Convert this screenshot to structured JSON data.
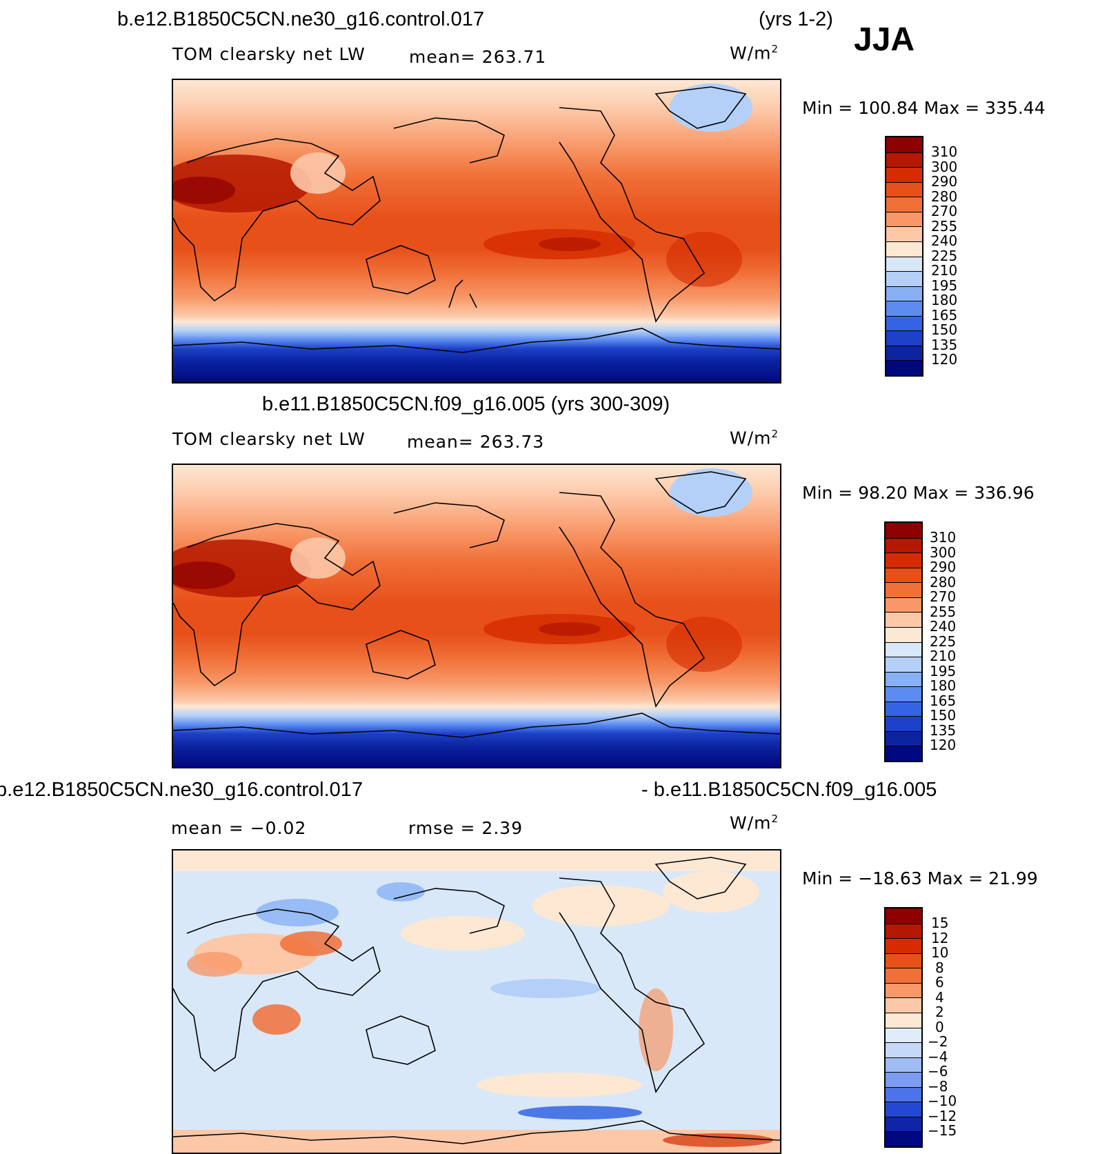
{
  "season": "JJA",
  "panels": [
    {
      "title_left": "b.e12.B1850C5CN.ne30_g16.control.017",
      "title_right": "(yrs 1-2)",
      "variable": "TOM clearsky net LW",
      "mean": "mean= 263.71",
      "units": "W/m",
      "units_sup": "2",
      "minmax": "Min  =  100.84  Max  =  335.44",
      "colorbar_labels": [
        "310",
        "300",
        "290",
        "280",
        "270",
        "255",
        "240",
        "225",
        "210",
        "195",
        "180",
        "165",
        "150",
        "135",
        "120"
      ],
      "colorbar_colors": [
        "#8c0000",
        "#b41800",
        "#d42c00",
        "#e8501a",
        "#f07038",
        "#f89868",
        "#fcc8a8",
        "#fde8d4",
        "#d8e8f8",
        "#b4d0f8",
        "#88b0f4",
        "#5c8cf0",
        "#3464e4",
        "#1c40c8",
        "#0c24a0",
        "#000880"
      ]
    },
    {
      "title_left": "b.e11.B1850C5CN.f09_g16.005 (yrs 300-309)",
      "variable": "TOM clearsky net LW",
      "mean": "mean= 263.73",
      "units": "W/m",
      "units_sup": "2",
      "minmax": "Min  =   98.20  Max  =  336.96",
      "colorbar_labels": [
        "310",
        "300",
        "290",
        "280",
        "270",
        "255",
        "240",
        "225",
        "210",
        "195",
        "180",
        "165",
        "150",
        "135",
        "120"
      ]
    },
    {
      "title_left": "b.e12.B1850C5CN.ne30_g16.control.017",
      "title_right": "- b.e11.B1850C5CN.f09_g16.005",
      "mean": "mean  =   −0.02",
      "rmse": "rmse  =    2.39",
      "units": "W/m",
      "units_sup": "2",
      "minmax": "Min  =  −18.63  Max  =   21.99",
      "colorbar_labels": [
        "15",
        "12",
        "10",
        "8",
        "6",
        "4",
        "2",
        "0",
        "−2",
        "−4",
        "−6",
        "−8",
        "−10",
        "−12",
        "−15"
      ],
      "colorbar_colors": [
        "#8c0000",
        "#b41800",
        "#d42c00",
        "#e8501a",
        "#f07038",
        "#f89868",
        "#fcc8a8",
        "#fde8d4",
        "#e0ecfa",
        "#c4d8f8",
        "#a0bcf4",
        "#7c9cf0",
        "#4c74e8",
        "#2448d4",
        "#1024a8",
        "#000880"
      ]
    }
  ]
}
